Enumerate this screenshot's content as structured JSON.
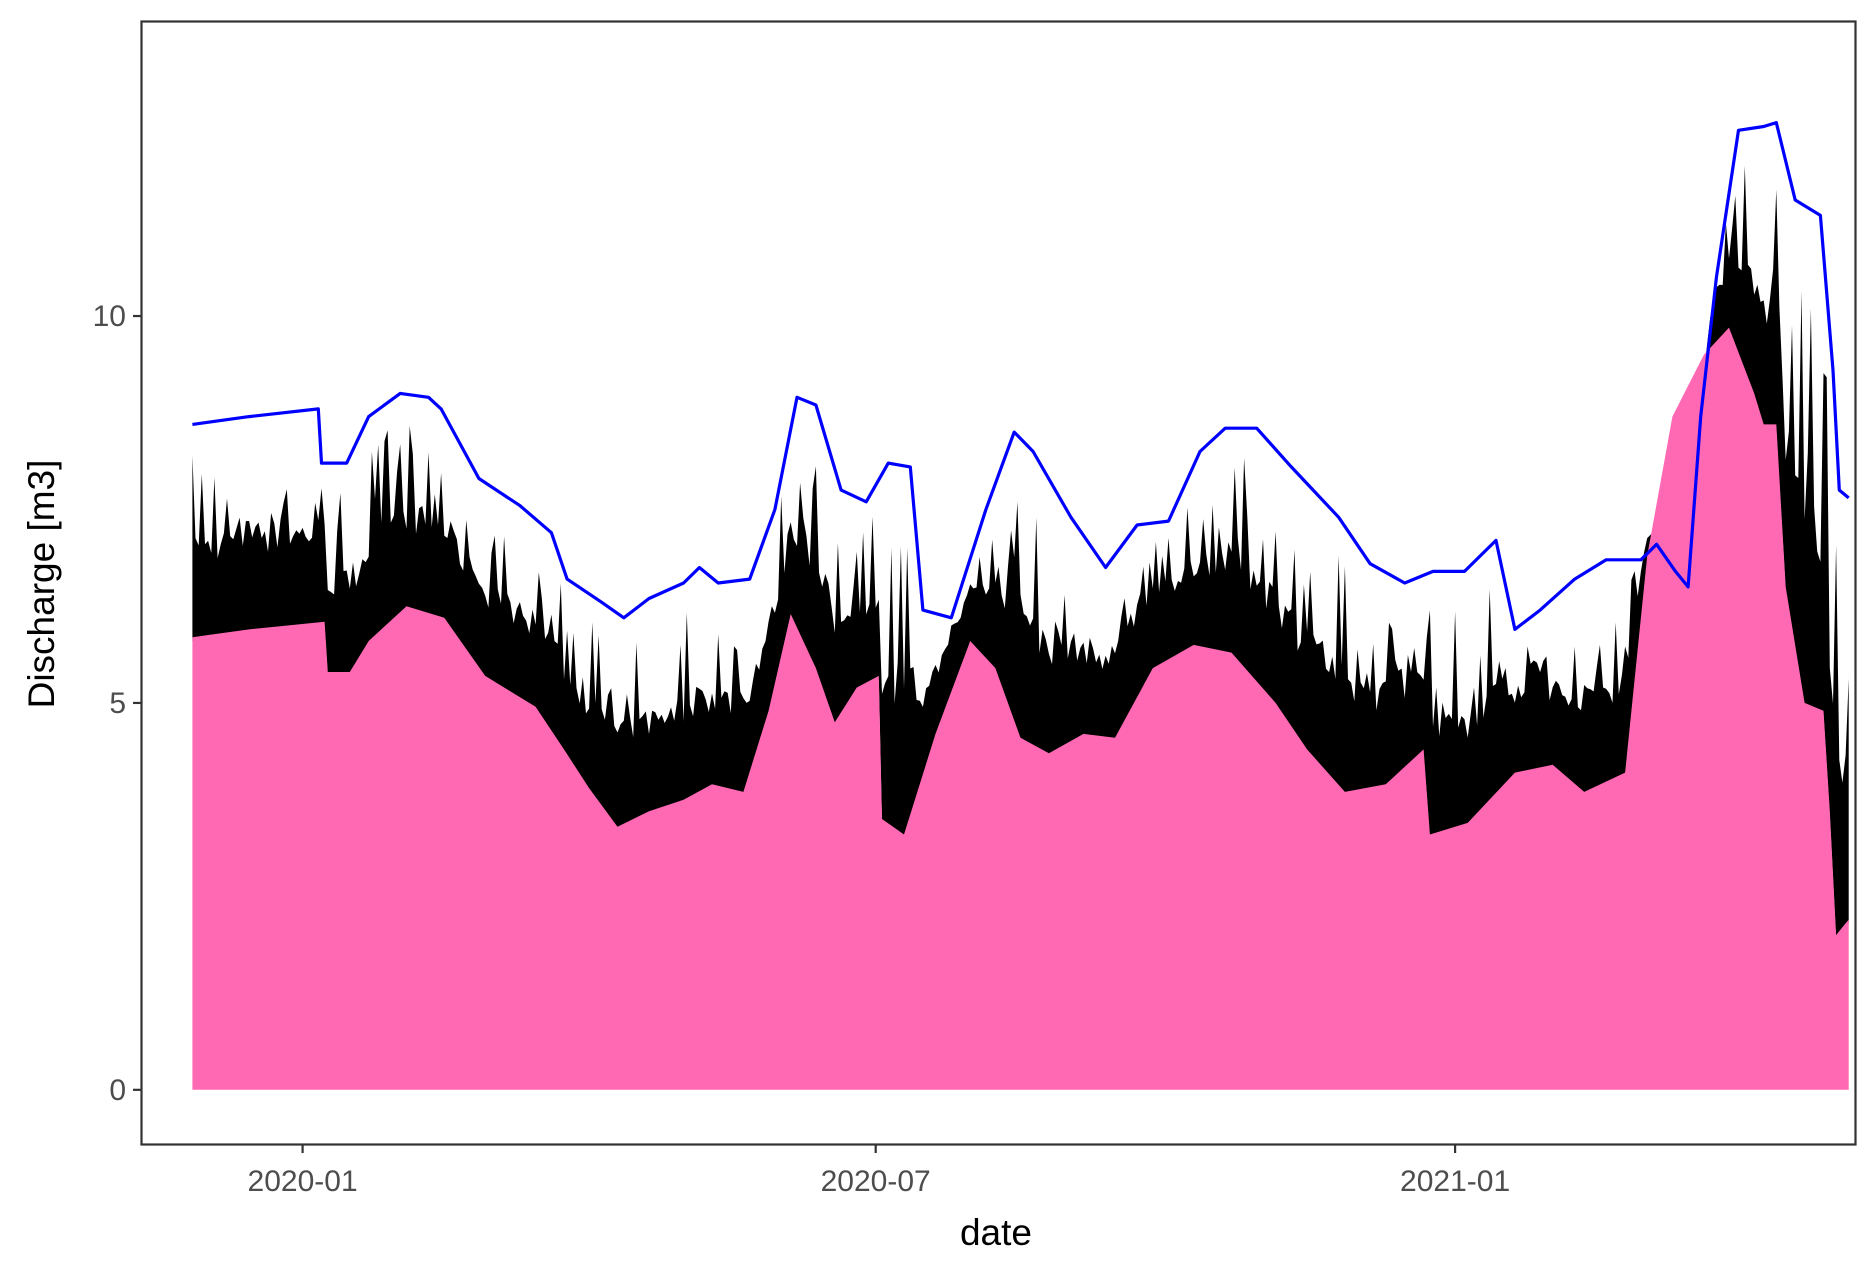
{
  "chart_data": {
    "type": "area",
    "title": "",
    "xlabel": "date",
    "ylabel": "Discharge [m3]",
    "xlim": [
      "2019-11-11",
      "2021-05-08"
    ],
    "ylim": [
      -0.7,
      13.8
    ],
    "x_ticks": [
      "2020-01",
      "2020-07",
      "2021-01"
    ],
    "x_tick_dates": [
      "2020-01-01",
      "2020-07-01",
      "2021-01-01"
    ],
    "y_ticks": [
      0,
      5,
      10
    ],
    "grid": false,
    "legend": "none",
    "colors": {
      "baseflow": "#ff69b4",
      "peaks": "#000000",
      "line": "#0000ff",
      "panel_border": "#333333"
    },
    "series": [
      {
        "kind": "area",
        "values": [
          [
            "2019-11-27",
            5.85
          ],
          [
            "2019-12-15",
            5.95
          ],
          [
            "2020-01-08",
            6.05
          ],
          [
            "2020-01-09",
            5.4
          ],
          [
            "2020-01-16",
            5.4
          ],
          [
            "2020-01-22",
            5.8
          ],
          [
            "2020-02-03",
            6.25
          ],
          [
            "2020-02-15",
            6.1
          ],
          [
            "2020-02-28",
            5.35
          ],
          [
            "2020-03-15",
            4.95
          ],
          [
            "2020-03-24",
            4.4
          ],
          [
            "2020-04-01",
            3.9
          ],
          [
            "2020-04-10",
            3.4
          ],
          [
            "2020-04-20",
            3.6
          ],
          [
            "2020-05-01",
            3.75
          ],
          [
            "2020-05-10",
            3.95
          ],
          [
            "2020-05-20",
            3.85
          ],
          [
            "2020-05-28",
            4.9
          ],
          [
            "2020-06-04",
            6.15
          ],
          [
            "2020-06-12",
            5.45
          ],
          [
            "2020-06-18",
            4.75
          ],
          [
            "2020-06-25",
            5.2
          ],
          [
            "2020-07-02",
            5.35
          ],
          [
            "2020-07-03",
            3.5
          ],
          [
            "2020-07-10",
            3.3
          ],
          [
            "2020-07-20",
            4.6
          ],
          [
            "2020-07-31",
            5.8
          ],
          [
            "2020-08-08",
            5.45
          ],
          [
            "2020-08-16",
            4.55
          ],
          [
            "2020-08-25",
            4.35
          ],
          [
            "2020-09-05",
            4.6
          ],
          [
            "2020-09-15",
            4.55
          ],
          [
            "2020-09-27",
            5.45
          ],
          [
            "2020-10-10",
            5.75
          ],
          [
            "2020-10-22",
            5.65
          ],
          [
            "2020-11-05",
            5.0
          ],
          [
            "2020-11-15",
            4.4
          ],
          [
            "2020-11-27",
            3.85
          ],
          [
            "2020-12-10",
            3.95
          ],
          [
            "2020-12-22",
            4.4
          ],
          [
            "2020-12-24",
            3.3
          ],
          [
            "2021-01-05",
            3.45
          ],
          [
            "2021-01-20",
            4.1
          ],
          [
            "2021-02-01",
            4.2
          ],
          [
            "2021-02-11",
            3.85
          ],
          [
            "2021-02-24",
            4.1
          ],
          [
            "2021-03-03",
            6.9
          ],
          [
            "2021-03-11",
            8.7
          ],
          [
            "2021-03-21",
            9.5
          ],
          [
            "2021-03-29",
            9.85
          ],
          [
            "2021-04-06",
            9.0
          ],
          [
            "2021-04-09",
            8.6
          ],
          [
            "2021-04-13",
            8.6
          ],
          [
            "2021-04-16",
            6.5
          ],
          [
            "2021-04-22",
            5.0
          ],
          [
            "2021-04-28",
            4.9
          ],
          [
            "2021-04-30",
            3.6
          ],
          [
            "2021-05-02",
            2.0
          ],
          [
            "2021-05-04",
            2.1
          ],
          [
            "2021-05-06",
            2.2
          ]
        ]
      },
      {
        "kind": "line",
        "values": [
          [
            "2019-11-27",
            8.6
          ],
          [
            "2019-12-15",
            8.7
          ],
          [
            "2020-01-06",
            8.8
          ],
          [
            "2020-01-07",
            8.1
          ],
          [
            "2020-01-15",
            8.1
          ],
          [
            "2020-01-22",
            8.7
          ],
          [
            "2020-02-01",
            9.0
          ],
          [
            "2020-02-10",
            8.95
          ],
          [
            "2020-02-14",
            8.8
          ],
          [
            "2020-02-26",
            7.9
          ],
          [
            "2020-03-10",
            7.55
          ],
          [
            "2020-03-20",
            7.2
          ],
          [
            "2020-03-25",
            6.6
          ],
          [
            "2020-04-05",
            6.3
          ],
          [
            "2020-04-12",
            6.1
          ],
          [
            "2020-04-20",
            6.35
          ],
          [
            "2020-05-01",
            6.55
          ],
          [
            "2020-05-06",
            6.75
          ],
          [
            "2020-05-12",
            6.55
          ],
          [
            "2020-05-22",
            6.6
          ],
          [
            "2020-05-30",
            7.5
          ],
          [
            "2020-06-06",
            8.95
          ],
          [
            "2020-06-12",
            8.85
          ],
          [
            "2020-06-20",
            7.75
          ],
          [
            "2020-06-28",
            7.6
          ],
          [
            "2020-07-05",
            8.1
          ],
          [
            "2020-07-12",
            8.05
          ],
          [
            "2020-07-16",
            6.2
          ],
          [
            "2020-07-25",
            6.1
          ],
          [
            "2020-08-05",
            7.5
          ],
          [
            "2020-08-14",
            8.5
          ],
          [
            "2020-08-20",
            8.25
          ],
          [
            "2020-09-01",
            7.4
          ],
          [
            "2020-09-12",
            6.75
          ],
          [
            "2020-09-22",
            7.3
          ],
          [
            "2020-10-02",
            7.35
          ],
          [
            "2020-10-12",
            8.25
          ],
          [
            "2020-10-20",
            8.55
          ],
          [
            "2020-10-30",
            8.55
          ],
          [
            "2020-11-10",
            8.05
          ],
          [
            "2020-11-25",
            7.4
          ],
          [
            "2020-12-05",
            6.8
          ],
          [
            "2020-12-16",
            6.55
          ],
          [
            "2020-12-25",
            6.7
          ],
          [
            "2021-01-04",
            6.7
          ],
          [
            "2021-01-14",
            7.1
          ],
          [
            "2021-01-20",
            5.95
          ],
          [
            "2021-01-28",
            6.2
          ],
          [
            "2021-02-08",
            6.6
          ],
          [
            "2021-02-18",
            6.85
          ],
          [
            "2021-03-01",
            6.85
          ],
          [
            "2021-03-06",
            7.05
          ],
          [
            "2021-03-12",
            6.7
          ],
          [
            "2021-03-16",
            6.5
          ],
          [
            "2021-03-20",
            8.7
          ],
          [
            "2021-03-25",
            10.5
          ],
          [
            "2021-04-01",
            12.4
          ],
          [
            "2021-04-09",
            12.45
          ],
          [
            "2021-04-13",
            12.5
          ],
          [
            "2021-04-19",
            11.5
          ],
          [
            "2021-04-27",
            11.3
          ],
          [
            "2021-05-01",
            9.3
          ],
          [
            "2021-05-03",
            7.75
          ],
          [
            "2021-05-06",
            7.65
          ]
        ]
      }
    ]
  }
}
